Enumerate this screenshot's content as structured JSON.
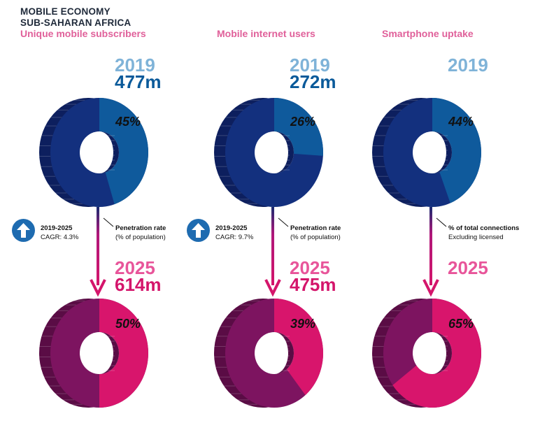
{
  "header": {
    "line1": "MOBILE ECONOMY",
    "line2": "SUB-SAHARAN AFRICA"
  },
  "colors": {
    "blue_dark": "#0d1f5e",
    "blue_mid": "#13307e",
    "blue_light": "#0f5a9c",
    "pink_dark": "#5a0c45",
    "pink_mid": "#7d1460",
    "pink_light": "#d8156c",
    "arrow": "#b0177a",
    "year2019": "#7fb3d8",
    "value2019": "#0a5a9a",
    "year2025": "#e8559a",
    "value2025": "#d4156b"
  },
  "columns": [
    {
      "title": "Unique mobile subscribers",
      "year_2019": "2019",
      "value_2019": "477m",
      "year_2025": "2025",
      "value_2025": "614m",
      "pct_2019": "45%",
      "pct_2025": "50%",
      "cagr": {
        "period": "2019-2025",
        "rate": "CAGR: 4.3%",
        "icon": "up-arrow-icon"
      },
      "note": {
        "line1": "Penetration rate",
        "line2": "(% of population)"
      }
    },
    {
      "title": "Mobile internet users",
      "year_2019": "2019",
      "value_2019": "272m",
      "year_2025": "2025",
      "value_2025": "475m",
      "pct_2019": "26%",
      "pct_2025": "39%",
      "cagr": {
        "period": "2019-2025",
        "rate": "CAGR: 9.7%",
        "icon": "up-arrow-icon"
      },
      "note": {
        "line1": "Penetration rate",
        "line2": "(% of population)"
      }
    },
    {
      "title": "Smartphone uptake",
      "year_2019": "2019",
      "year_2025": "2025",
      "pct_2019": "44%",
      "pct_2025": "65%",
      "note": {
        "line1": "% of total connections",
        "line2": "Excluding licensed"
      }
    }
  ],
  "chart_data": {
    "type": "pie",
    "title": "",
    "charts": [
      {
        "metric": "Unique mobile subscribers",
        "year": 2019,
        "percent": 45
      },
      {
        "metric": "Unique mobile subscribers",
        "year": 2025,
        "percent": 50
      },
      {
        "metric": "Mobile internet users",
        "year": 2019,
        "percent": 26
      },
      {
        "metric": "Mobile internet users",
        "year": 2025,
        "percent": 39
      },
      {
        "metric": "Smartphone uptake",
        "year": 2019,
        "percent": 44
      },
      {
        "metric": "Smartphone uptake",
        "year": 2025,
        "percent": 65
      }
    ]
  }
}
